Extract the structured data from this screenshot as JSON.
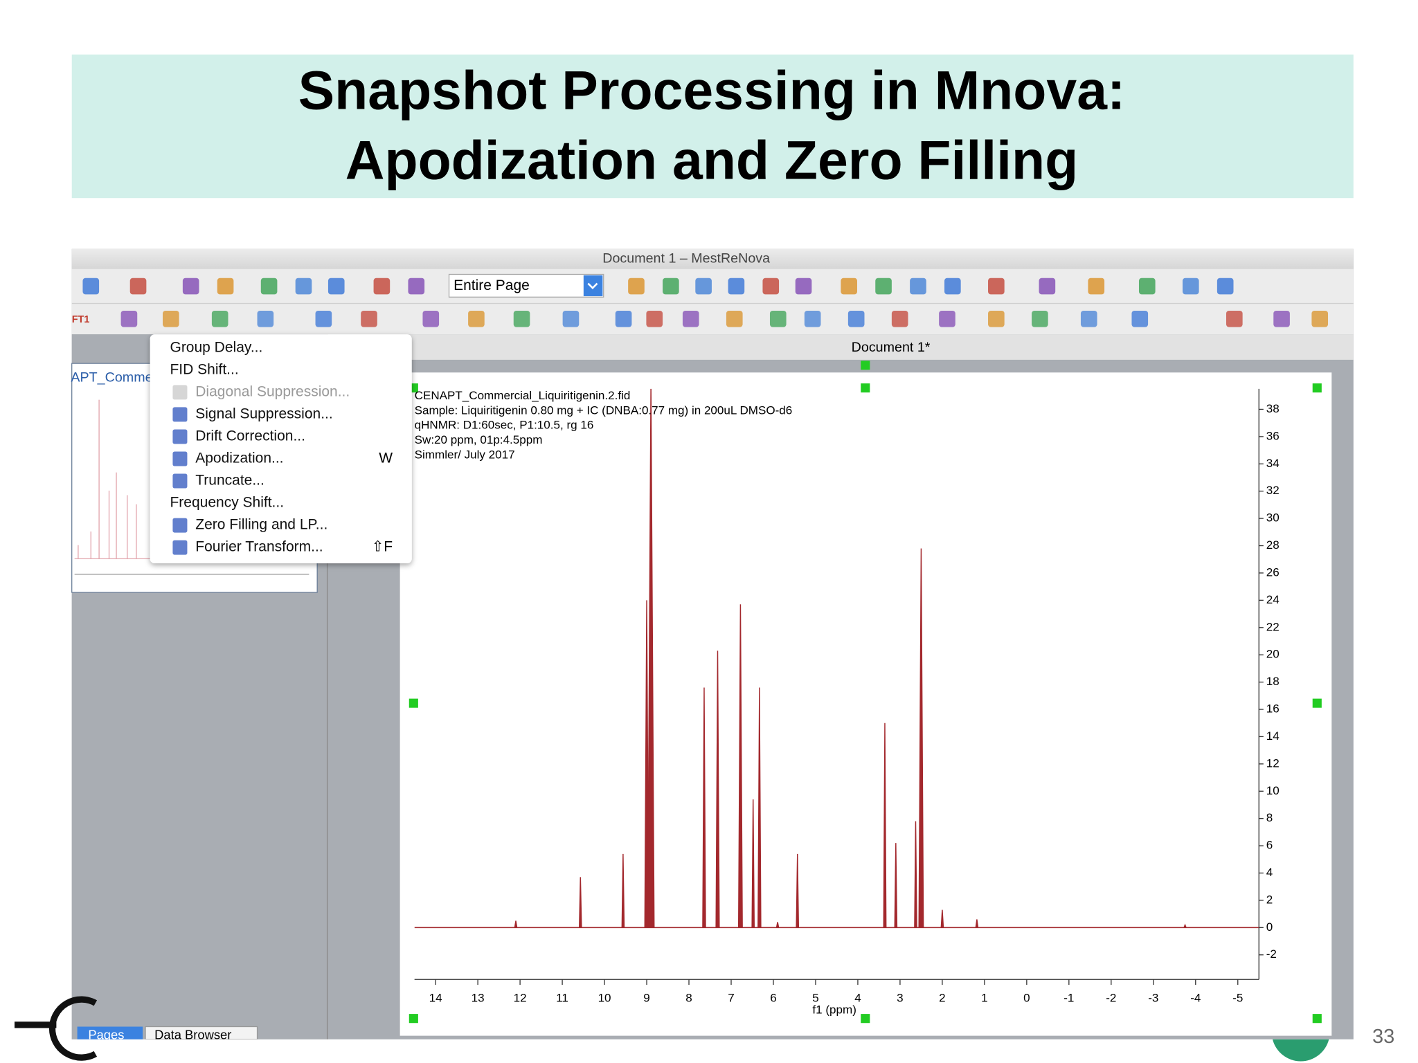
{
  "slide": {
    "title_lines": [
      "Snapshot Processing in Mnova:",
      "Apodization and Zero Filling"
    ],
    "page_number": "33"
  },
  "window": {
    "title": "Document 1 – MestReNova",
    "zoom_select": "Entire Page",
    "toolbar_label": "FT1",
    "document_tab": "Document 1*",
    "thumbnail_title": "APT_Comme",
    "bottom_tabs": [
      "Pages",
      "Data Browser"
    ]
  },
  "menu": {
    "items": [
      {
        "label": "Group Delay..."
      },
      {
        "label": "FID Shift..."
      },
      {
        "label": "Diagonal Suppression...",
        "disabled": true
      },
      {
        "label": "Signal Suppression..."
      },
      {
        "label": "Drift Correction..."
      },
      {
        "label": "Apodization...",
        "shortcut": "W"
      },
      {
        "label": "Truncate..."
      },
      {
        "label": "Frequency Shift..."
      },
      {
        "label": "Zero Filling and LP..."
      },
      {
        "label": "Fourier Transform...",
        "shortcut": "⇧F"
      }
    ]
  },
  "chart_data": {
    "type": "spectrum",
    "annotations": [
      "CENAPT_Commercial_Liquiritigenin.2.fid",
      "Sample: Liquiritigenin 0.80 mg + IC (DNBA:0.77 mg) in 200uL DMSO-d6",
      "qHNMR: D1:60sec, P1:10.5, rg 16",
      "Sw:20 ppm, 01p:4.5ppm",
      "Simmler/ July 2017"
    ],
    "xlabel": "f1 (ppm)",
    "color": "#a3282d",
    "x": [
      12.1,
      10.57,
      9.56,
      9.0,
      8.9,
      7.64,
      7.32,
      6.78,
      6.48,
      6.33,
      5.9,
      5.43,
      3.36,
      3.1,
      2.63,
      2.5,
      2.0,
      1.18,
      -3.75
    ],
    "values": [
      0.5,
      3.7,
      5.4,
      24,
      40,
      17.6,
      20.3,
      23.7,
      9.4,
      17.6,
      0.4,
      5.4,
      15.0,
      6.2,
      7.8,
      27.8,
      1.3,
      0.6,
      0.2
    ],
    "xlim": [
      14.5,
      -5.5
    ],
    "ylim": [
      -3.8,
      39.5
    ],
    "xticks": [
      14,
      13,
      12,
      11,
      10,
      9,
      8,
      7,
      6,
      5,
      4,
      3,
      2,
      1,
      0,
      -1,
      -2,
      -3,
      -4,
      -5
    ],
    "yticks": [
      38,
      36,
      34,
      32,
      30,
      28,
      26,
      24,
      22,
      20,
      18,
      16,
      14,
      12,
      10,
      8,
      6,
      4,
      2,
      0,
      -2
    ]
  }
}
